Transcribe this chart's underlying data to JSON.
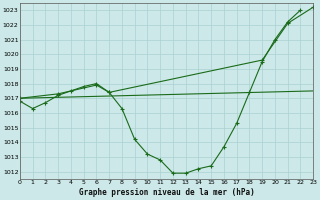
{
  "xlabel": "Graphe pression niveau de la mer (hPa)",
  "background_color": "#cce8e8",
  "grid_color": "#aad0d0",
  "line_color": "#1a6b1a",
  "xlim": [
    0,
    23
  ],
  "ylim": [
    1011.5,
    1023.5
  ],
  "yticks": [
    1012,
    1013,
    1014,
    1015,
    1016,
    1017,
    1018,
    1019,
    1020,
    1021,
    1022,
    1023
  ],
  "xticks": [
    0,
    1,
    2,
    3,
    4,
    5,
    6,
    7,
    8,
    9,
    10,
    11,
    12,
    13,
    14,
    15,
    16,
    17,
    18,
    19,
    20,
    21,
    22,
    23
  ],
  "curve1_x": [
    0,
    1,
    2,
    3,
    4,
    5,
    6,
    7,
    8,
    9,
    10,
    11,
    12,
    13,
    14,
    15,
    16,
    17,
    18,
    19,
    20,
    21,
    22
  ],
  "curve1_y": [
    1016.8,
    1016.3,
    1016.7,
    1017.2,
    1017.5,
    1017.8,
    1018.0,
    1017.4,
    1016.3,
    1014.2,
    1013.2,
    1012.8,
    1011.9,
    1011.9,
    1012.2,
    1012.4,
    1013.7,
    1015.3,
    1017.4,
    1019.5,
    1021.0,
    1022.2,
    1023.0
  ],
  "curve2_x": [
    0,
    3,
    6,
    7,
    19,
    21,
    23
  ],
  "curve2_y": [
    1017.0,
    1017.3,
    1017.9,
    1017.4,
    1019.6,
    1022.1,
    1023.2
  ],
  "curve3_x": [
    0,
    23
  ],
  "curve3_y": [
    1017.0,
    1017.5
  ]
}
